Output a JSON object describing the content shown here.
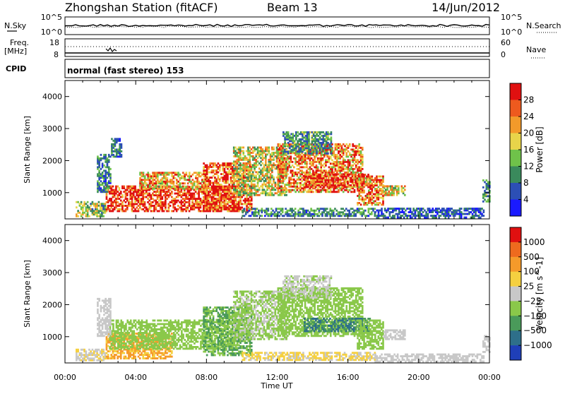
{
  "header": {
    "station": "Zhongshan Station (fitACF)",
    "beam": "Beam 13",
    "date": "14/Jun/2012"
  },
  "strip1": {
    "left_label": "N.Sky",
    "right_label": "N.Search",
    "ticks_top": "10^5",
    "ticks_bottom": "10^0",
    "right_ticks_top": "10^5",
    "right_ticks_bottom": "10^0"
  },
  "strip2": {
    "left_label_1": "Freq.",
    "left_label_2": "[MHz]",
    "left_tick_top": "18",
    "left_tick_bottom": "8",
    "right_label": "Nave",
    "right_tick_top": "60",
    "right_tick_bottom": "0"
  },
  "cpid": {
    "label": "CPID",
    "text": "normal (fast stereo) 153"
  },
  "x_axis": {
    "label": "Time UT",
    "ticks": [
      "00:00",
      "04:00",
      "08:00",
      "12:00",
      "16:00",
      "20:00",
      "00:00"
    ]
  },
  "chart_data": [
    {
      "type": "heatmap",
      "ylabel": "Slant Range [km]",
      "xlabel": "Time UT",
      "xlim": [
        0,
        24
      ],
      "ylim": [
        180,
        4500
      ],
      "y_ticks": [
        1000,
        2000,
        3000,
        4000
      ],
      "colorbar": {
        "label": "Power [dB]",
        "ticks": [
          "28",
          "24",
          "20",
          "16",
          "12",
          "8",
          "4"
        ],
        "tick_values": [
          28,
          24,
          20,
          16,
          12,
          8,
          4
        ],
        "range": [
          0,
          30
        ],
        "colors": [
          "#1a1aff",
          "#2c4fb5",
          "#3a8a5c",
          "#6fc24a",
          "#e8d44a",
          "#f39a2a",
          "#ee5a1e",
          "#e01010"
        ]
      },
      "regions": [
        {
          "t0": 0.6,
          "t1": 2.3,
          "r0": 240,
          "r1": 700,
          "level": 14
        },
        {
          "t0": 2.3,
          "t1": 9.8,
          "r0": 400,
          "r1": 1200,
          "level": 28
        },
        {
          "t0": 4.2,
          "t1": 8.0,
          "r0": 1100,
          "r1": 1600,
          "level": 20
        },
        {
          "t0": 7.8,
          "t1": 10.5,
          "r0": 400,
          "r1": 1900,
          "level": 26
        },
        {
          "t0": 9.5,
          "t1": 12.5,
          "r0": 900,
          "r1": 2400,
          "level": 16
        },
        {
          "t0": 12.0,
          "t1": 16.8,
          "r0": 1000,
          "r1": 2500,
          "level": 22
        },
        {
          "t0": 13.5,
          "t1": 17.2,
          "r0": 1150,
          "r1": 1550,
          "level": 27
        },
        {
          "t0": 12.3,
          "t1": 15.0,
          "r0": 2200,
          "r1": 2900,
          "level": 10
        },
        {
          "t0": 16.5,
          "t1": 18.0,
          "r0": 600,
          "r1": 1500,
          "level": 23
        },
        {
          "t0": 18.0,
          "t1": 19.2,
          "r0": 900,
          "r1": 1200,
          "level": 18
        },
        {
          "t0": 10.0,
          "t1": 17.5,
          "r0": 250,
          "r1": 500,
          "level": 9
        },
        {
          "t0": 17.5,
          "t1": 23.7,
          "r0": 200,
          "r1": 500,
          "level": 6
        },
        {
          "t0": 1.8,
          "t1": 2.6,
          "r0": 1000,
          "r1": 2200,
          "level": 8
        },
        {
          "t0": 2.6,
          "t1": 3.2,
          "r0": 2100,
          "r1": 2700,
          "level": 7
        },
        {
          "t0": 23.6,
          "t1": 24.0,
          "r0": 700,
          "r1": 1400,
          "level": 10
        }
      ]
    },
    {
      "type": "heatmap",
      "ylabel": "Slant Range [km]",
      "xlabel": "Time UT",
      "xlim": [
        0,
        24
      ],
      "ylim": [
        180,
        4500
      ],
      "y_ticks": [
        1000,
        2000,
        3000,
        4000
      ],
      "colorbar": {
        "label": "Velocity [m s^-1]",
        "ticks": [
          "1000",
          "500",
          "100",
          "25",
          "−25",
          "−100",
          "−500",
          "−1000"
        ],
        "tick_values": [
          1000,
          500,
          100,
          25,
          -25,
          -100,
          -500,
          -1000
        ],
        "range": [
          -1200,
          1200
        ],
        "colors": [
          "#1f3fb8",
          "#2e6f8a",
          "#4a9a5a",
          "#8ac84a",
          "#c8c8c8",
          "#f5d040",
          "#f59a2a",
          "#ee6a1e",
          "#e01010"
        ]
      },
      "regions": [
        {
          "t0": 0.6,
          "t1": 2.3,
          "r0": 240,
          "r1": 600,
          "level": 120
        },
        {
          "t0": 2.3,
          "t1": 6.0,
          "r0": 300,
          "r1": 1100,
          "level": 450
        },
        {
          "t0": 2.5,
          "t1": 9.8,
          "r0": 600,
          "r1": 1500,
          "level": -250
        },
        {
          "t0": 7.8,
          "t1": 10.5,
          "r0": 400,
          "r1": 1900,
          "level": -400
        },
        {
          "t0": 9.5,
          "t1": 12.5,
          "r0": 900,
          "r1": 2400,
          "level": -150
        },
        {
          "t0": 12.0,
          "t1": 16.8,
          "r0": 1000,
          "r1": 2500,
          "level": -300
        },
        {
          "t0": 13.5,
          "t1": 17.2,
          "r0": 1150,
          "r1": 1550,
          "level": -700
        },
        {
          "t0": 12.3,
          "t1": 15.0,
          "r0": 2200,
          "r1": 2900,
          "level": -120
        },
        {
          "t0": 16.5,
          "t1": 18.0,
          "r0": 600,
          "r1": 1500,
          "level": -200
        },
        {
          "t0": 18.0,
          "t1": 19.2,
          "r0": 900,
          "r1": 1200,
          "level": 80
        },
        {
          "t0": 10.0,
          "t1": 17.5,
          "r0": 250,
          "r1": 500,
          "level": 150
        },
        {
          "t0": 17.5,
          "t1": 23.7,
          "r0": 200,
          "r1": 450,
          "level": 60
        },
        {
          "t0": 1.8,
          "t1": 2.6,
          "r0": 1000,
          "r1": 2200,
          "level": -60
        },
        {
          "t0": 23.6,
          "t1": 24.0,
          "r0": 500,
          "r1": 1000,
          "level": 40
        }
      ]
    }
  ]
}
